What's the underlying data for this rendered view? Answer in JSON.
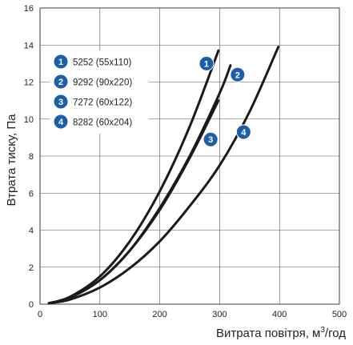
{
  "chart_data": {
    "type": "line",
    "xlabel": "Витрата повітря, м",
    "xlabel_sup": "3",
    "xlabel_suffix": "/год",
    "ylabel": "Втрата тиску, Па",
    "xlim": [
      0,
      500
    ],
    "ylim": [
      0,
      16
    ],
    "x_ticks": [
      0,
      100,
      200,
      300,
      400,
      500
    ],
    "y_ticks": [
      0,
      2,
      4,
      6,
      8,
      10,
      12,
      14,
      16
    ],
    "grid": true,
    "legend_position": "top-left",
    "marker_color": "#1d5fa6",
    "line_color": "#1a1a1a",
    "series": [
      {
        "name": "5252 (55x110)",
        "marker": "1",
        "x": [
          15,
          50,
          100,
          150,
          200,
          250,
          298
        ],
        "y": [
          0.05,
          0.4,
          1.5,
          3.4,
          6.1,
          9.6,
          13.7
        ]
      },
      {
        "name": "9292 (90x220)",
        "marker": "2",
        "x": [
          15,
          50,
          100,
          150,
          200,
          250,
          300,
          318
        ],
        "y": [
          0.05,
          0.35,
          1.3,
          2.9,
          5.2,
          8.0,
          11.4,
          12.9
        ]
      },
      {
        "name": "7272 (60x122)",
        "marker": "3",
        "x": [
          15,
          50,
          100,
          150,
          200,
          250,
          298
        ],
        "y": [
          0.05,
          0.36,
          1.3,
          2.9,
          5.1,
          7.9,
          11.0
        ]
      },
      {
        "name": "8282 (60x204)",
        "marker": "4",
        "x": [
          15,
          50,
          100,
          150,
          200,
          250,
          300,
          350,
          398
        ],
        "y": [
          0.05,
          0.25,
          0.9,
          1.95,
          3.4,
          5.3,
          7.5,
          10.4,
          13.9
        ]
      }
    ]
  }
}
